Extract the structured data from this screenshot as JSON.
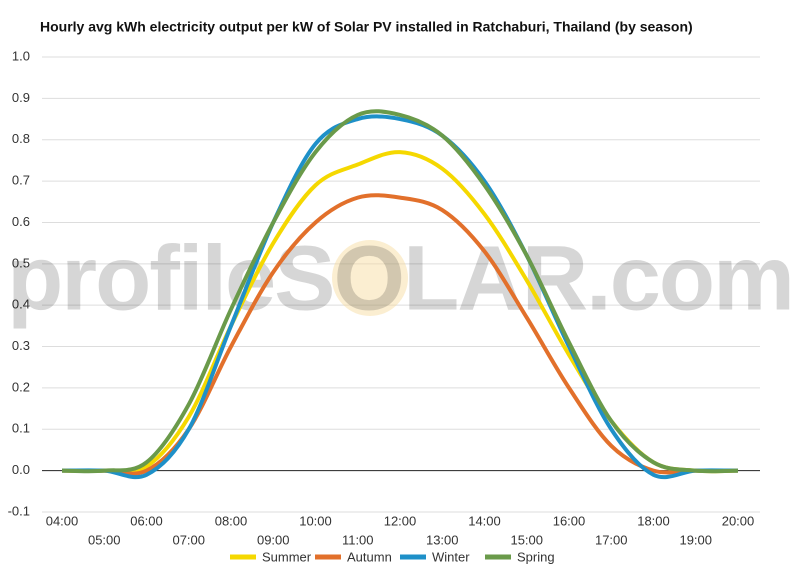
{
  "chart_data": {
    "type": "line",
    "title": "Hourly avg kWh electricity output per kW of Solar PV installed in Ratchaburi, Thailand (by season)",
    "watermark": "profileSOLAR.com",
    "categories": [
      "04:00",
      "05:00",
      "06:00",
      "07:00",
      "08:00",
      "09:00",
      "10:00",
      "11:00",
      "12:00",
      "13:00",
      "14:00",
      "15:00",
      "16:00",
      "17:00",
      "18:00",
      "19:00",
      "20:00"
    ],
    "series": [
      {
        "name": "Summer",
        "color": "#f5d800",
        "values": [
          0,
          0,
          0.01,
          0.13,
          0.35,
          0.55,
          0.69,
          0.74,
          0.77,
          0.73,
          0.62,
          0.46,
          0.28,
          0.12,
          0.02,
          0,
          0
        ]
      },
      {
        "name": "Autumn",
        "color": "#e2702b",
        "values": [
          0,
          0,
          0,
          0.1,
          0.3,
          0.48,
          0.6,
          0.66,
          0.66,
          0.63,
          0.53,
          0.37,
          0.2,
          0.06,
          0,
          0,
          0
        ]
      },
      {
        "name": "Winter",
        "color": "#1e90c8",
        "values": [
          0,
          0,
          -0.01,
          0.1,
          0.35,
          0.6,
          0.79,
          0.85,
          0.85,
          0.81,
          0.7,
          0.52,
          0.3,
          0.1,
          -0.01,
          0,
          0
        ]
      },
      {
        "name": "Spring",
        "color": "#6a9a4a",
        "values": [
          0,
          0,
          0.02,
          0.16,
          0.39,
          0.6,
          0.77,
          0.86,
          0.86,
          0.81,
          0.69,
          0.52,
          0.31,
          0.12,
          0.02,
          0,
          0
        ]
      }
    ],
    "ylim": [
      -0.1,
      1.0
    ],
    "yticks": [
      {
        "value": -0.1,
        "label": "-0.1"
      },
      {
        "value": 0,
        "label": "0.0"
      },
      0.1,
      0.2,
      0.3,
      0.4,
      0.5,
      0.6,
      0.7,
      0.8,
      0.9,
      {
        "value": 1,
        "label": "1.0"
      }
    ],
    "grid": true,
    "legend": "bottom"
  }
}
